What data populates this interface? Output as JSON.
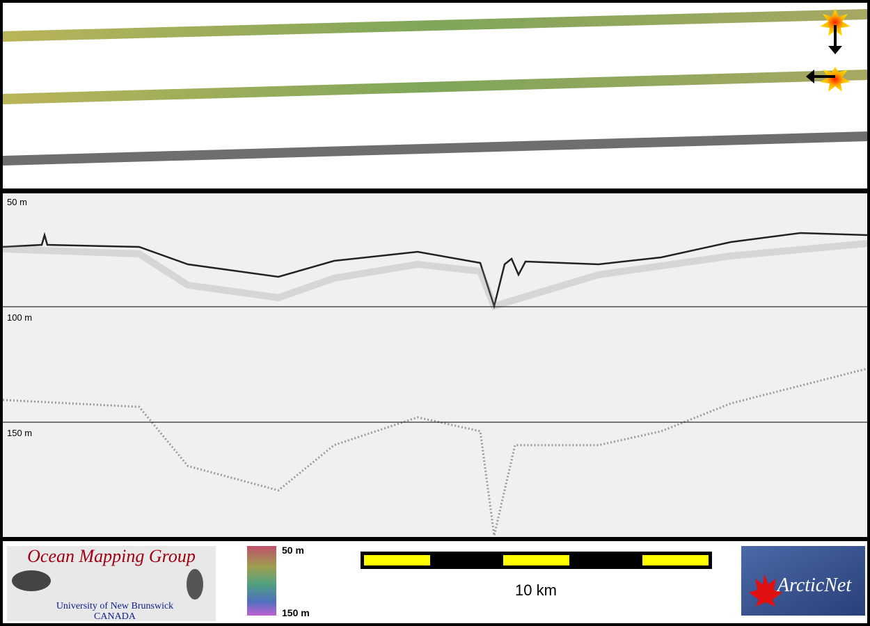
{
  "echogram": {
    "depth_labels": [
      "50 m",
      "100 m",
      "150 m"
    ]
  },
  "footer": {
    "logo": {
      "title": "Ocean Mapping Group",
      "university": "University of New Brunswick",
      "country": "CANADA"
    },
    "color_scale": {
      "top": "50 m",
      "bottom": "150 m"
    },
    "scale_bar": {
      "label": "10 km"
    },
    "partner_logo": "ArcticNet"
  }
}
